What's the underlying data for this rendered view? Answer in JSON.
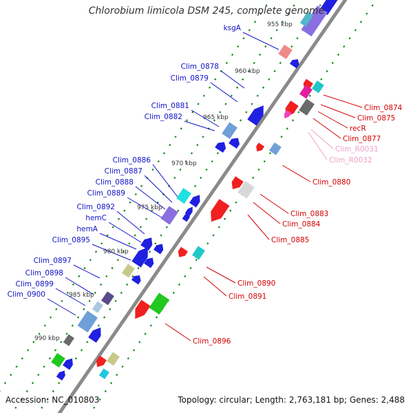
{
  "title": "Chlorobium limicola DSM 245, complete genome",
  "footer": {
    "accession": "Accession: NC_010803",
    "summary": "Topology: circular; Length: 2,763,181 bp; Genes: 2,488"
  },
  "colors": {
    "forward_label": "#1010c8",
    "reverse_label": "#d40000",
    "rna_label": "#f0a0c8",
    "backbone": "#8a8a8a",
    "tick": "#1a8a1a"
  },
  "ruler": [
    "955 kbp",
    "960 kbp",
    "965 kbp",
    "970 kbp",
    "975 kbp",
    "980 kbp",
    "985 kbp",
    "990 kbp"
  ],
  "forward_genes": [
    "ksgA",
    "Clim_0878",
    "Clim_0879",
    "Clim_0881",
    "Clim_0882",
    "Clim_0886",
    "Clim_0887",
    "Clim_0888",
    "Clim_0889",
    "Clim_0892",
    "hemC",
    "hemA",
    "Clim_0895",
    "Clim_0897",
    "Clim_0898",
    "Clim_0899",
    "Clim_0900"
  ],
  "reverse_genes": [
    "Clim_0874",
    "Clim_0875",
    "recR",
    "Clim_0877",
    "Clim_0880",
    "Clim_0883",
    "Clim_0884",
    "Clim_0885",
    "Clim_0890",
    "Clim_0891",
    "Clim_0896"
  ],
  "rna_genes": [
    "Clim_R0031",
    "Clim_R0032"
  ]
}
